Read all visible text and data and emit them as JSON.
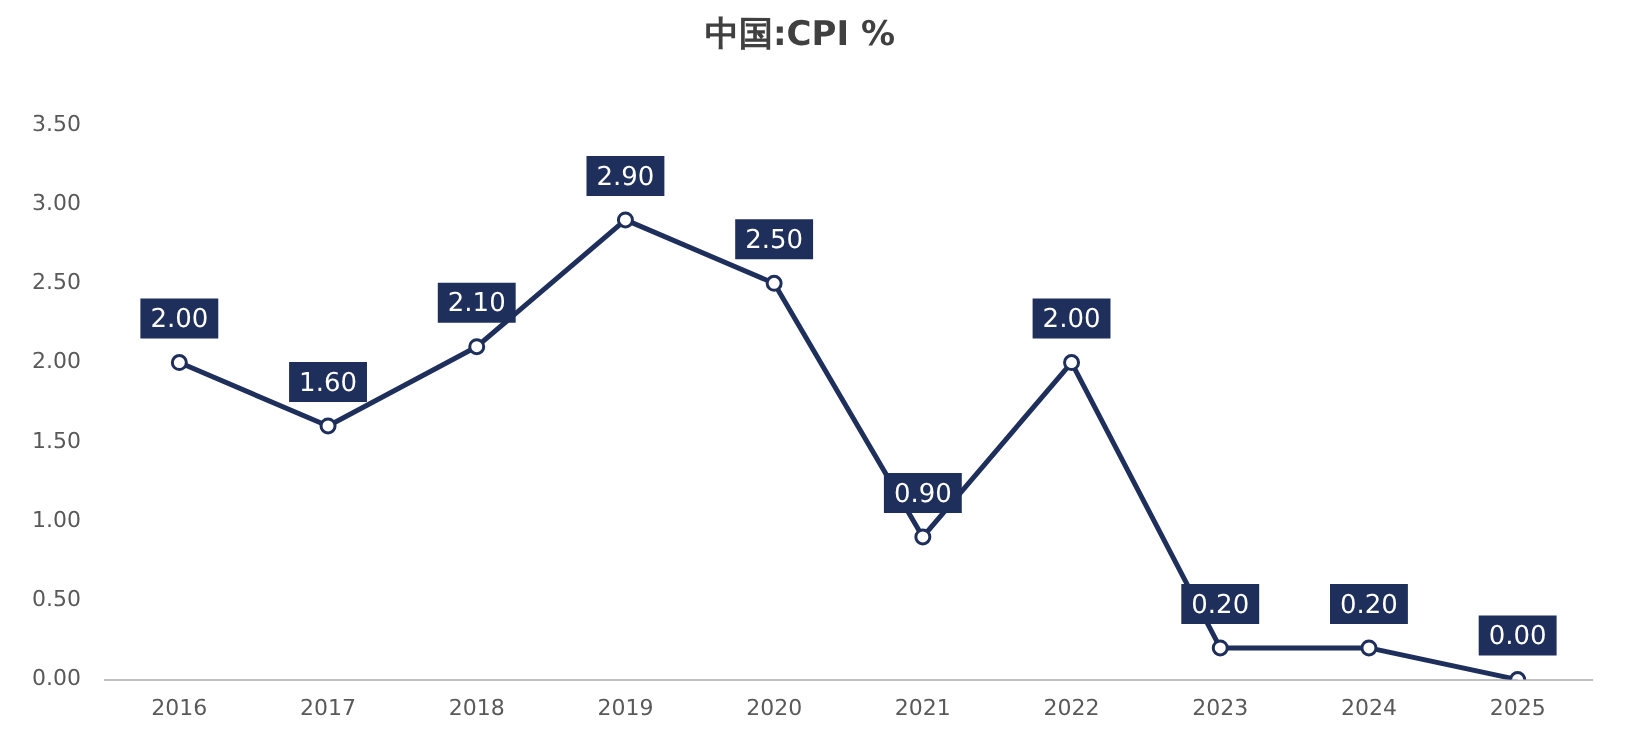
{
  "chart_data": {
    "type": "line",
    "title": "中国:CPI %",
    "categories": [
      "2016",
      "2017",
      "2018",
      "2019",
      "2020",
      "2021",
      "2022",
      "2023",
      "2024",
      "2025"
    ],
    "series": [
      {
        "color": "#1f2f5c",
        "values": [
          2.0,
          1.6,
          2.1,
          2.9,
          2.5,
          0.9,
          2.0,
          0.2,
          0.2,
          0.0
        ],
        "value_labels": [
          "2.00",
          "1.60",
          "2.10",
          "2.90",
          "2.50",
          "0.90",
          "2.00",
          "0.20",
          "0.20",
          "0.00"
        ]
      }
    ],
    "ylim": [
      0,
      3.5
    ],
    "yticks": [
      {
        "value": 0,
        "label": "0.00"
      },
      {
        "value": 0.5,
        "label": "0.50"
      },
      {
        "value": 1,
        "label": "1.00"
      },
      {
        "value": 1.5,
        "label": "1.50"
      },
      {
        "value": 2,
        "label": "2.00"
      },
      {
        "value": 2.5,
        "label": "2.50"
      },
      {
        "value": 3,
        "label": "3.00"
      },
      {
        "value": 3.5,
        "label": "3.50"
      }
    ],
    "marker": "circle"
  }
}
